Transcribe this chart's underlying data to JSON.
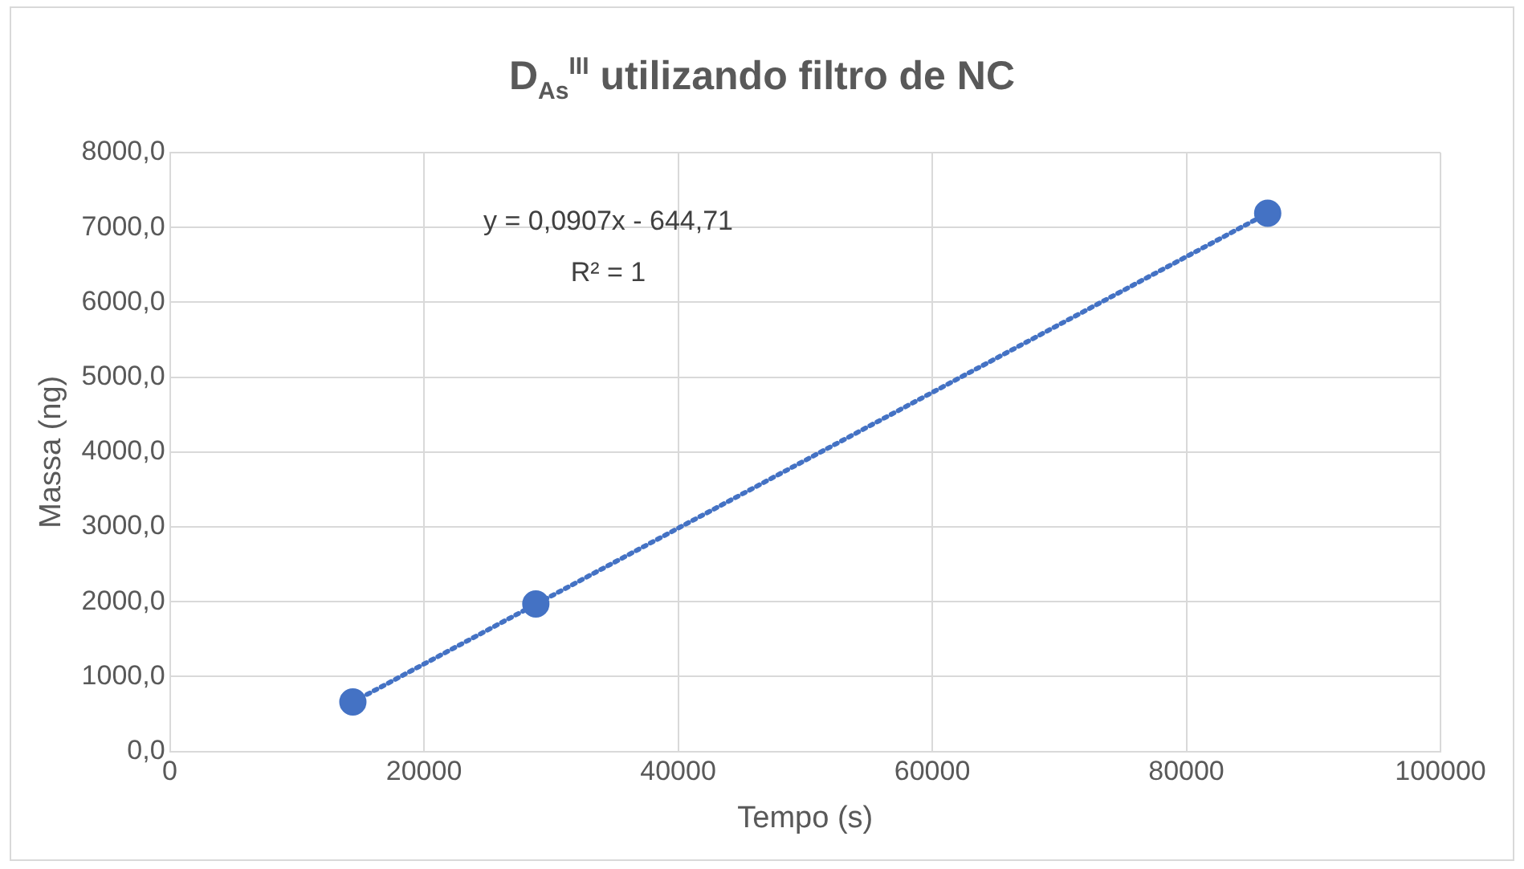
{
  "chart_data": {
    "type": "scatter",
    "title": "D$_{As}$$^{III}$ utilizando filtro de NC",
    "xlabel": "Tempo (s)",
    "ylabel": "Massa (ng)",
    "x": [
      14400,
      28800,
      86400
    ],
    "series": [
      {
        "color": "#4472c4",
        "values": [
          660,
          1970,
          7190
        ],
        "marker": "circle"
      },
      {
        "type": "line",
        "color": "#4472c4",
        "x": [
          14400,
          86400
        ],
        "values": [
          660,
          7190
        ],
        "line_style": "dotted",
        "marker": "none"
      }
    ],
    "xlim": [
      0,
      100000
    ],
    "xticks": [
      0,
      20000,
      40000,
      60000,
      80000,
      100000
    ],
    "ylim": [
      0,
      8000
    ],
    "yticks": [
      {
        "value": 0,
        "label": "0,0"
      },
      {
        "value": 1000,
        "label": "1000,0"
      },
      {
        "value": 2000,
        "label": "2000,0"
      },
      {
        "value": 3000,
        "label": "3000,0"
      },
      {
        "value": 4000,
        "label": "4000,0"
      },
      {
        "value": 5000,
        "label": "5000,0"
      },
      {
        "value": 6000,
        "label": "6000,0"
      },
      {
        "value": 7000,
        "label": "7000,0"
      },
      {
        "value": 8000,
        "label": "8000,0"
      }
    ],
    "grid": true,
    "legend": false,
    "annotations": [
      "y = 0,0907x - 644,71",
      "R² = 1"
    ]
  }
}
